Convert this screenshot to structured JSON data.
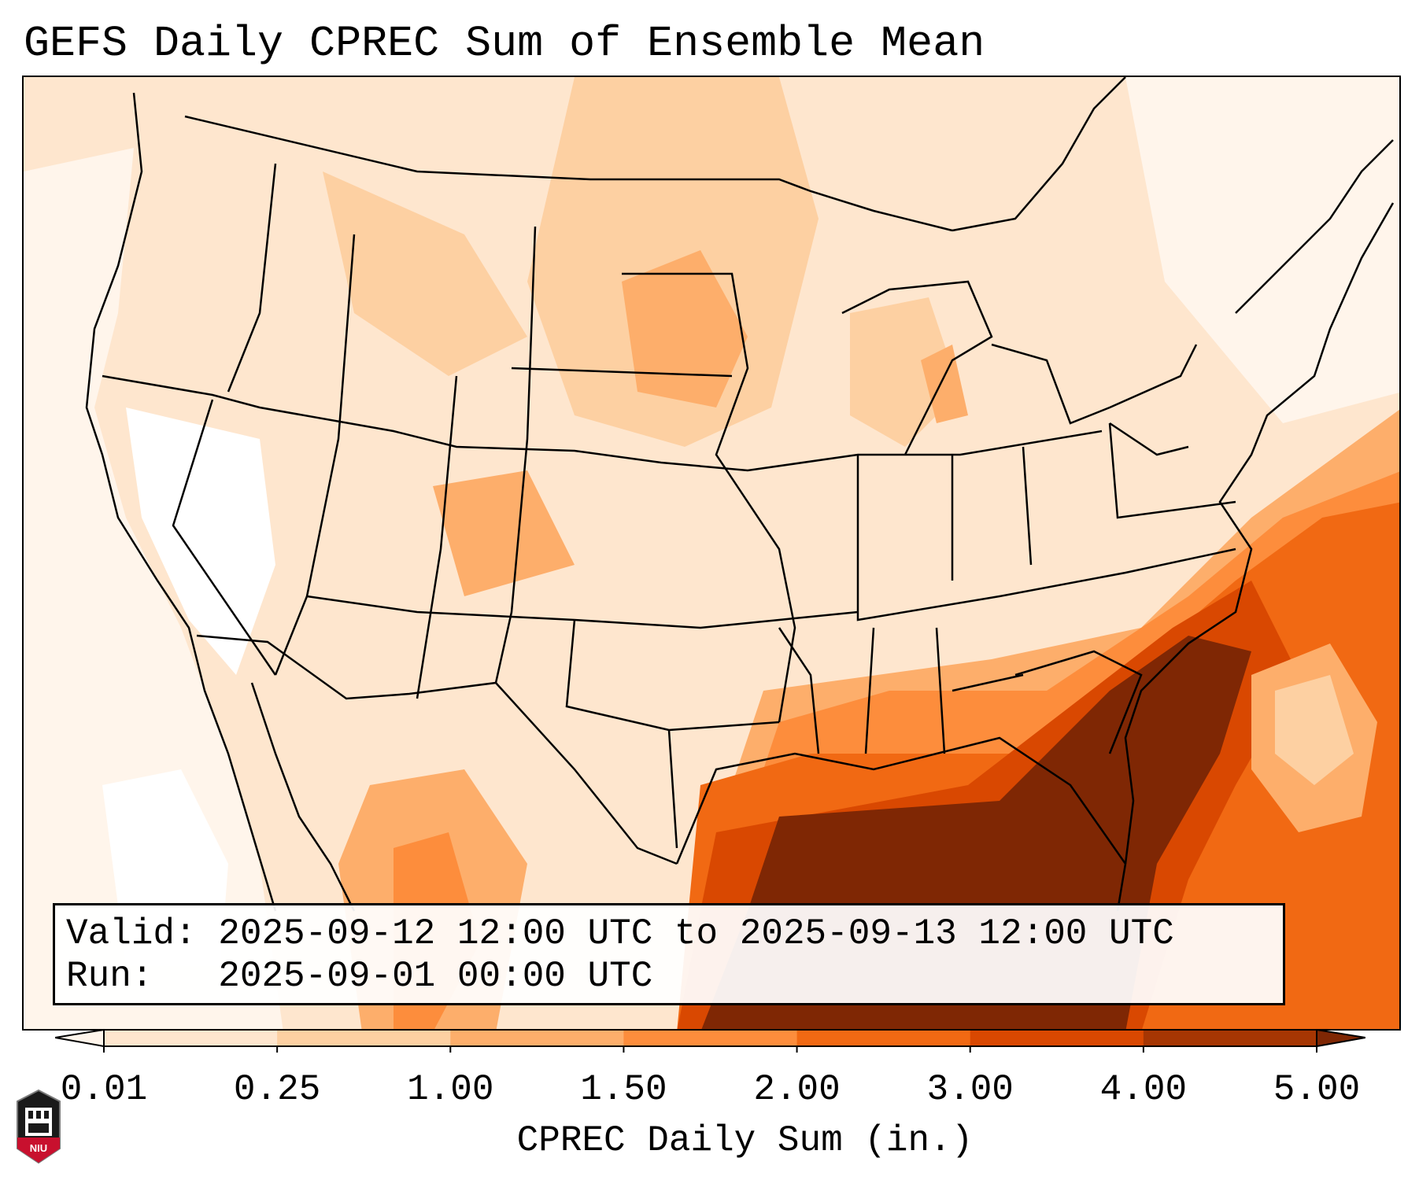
{
  "title": "GEFS Daily CPREC Sum of Ensemble Mean",
  "info": {
    "valid_line": "Valid: 2025-09-12 12:00 UTC to 2025-09-13 12:00 UTC",
    "run_line": "Run:   2025-09-01 00:00 UTC"
  },
  "colorbar": {
    "label": "CPREC Daily Sum (in.)",
    "levels": [
      "0.01",
      "0.25",
      "1.00",
      "1.50",
      "2.00",
      "3.00",
      "4.00",
      "5.00"
    ],
    "colors": [
      "#fff5eb",
      "#fee6ce",
      "#fdd0a2",
      "#fdae6b",
      "#fd8d3c",
      "#f16913",
      "#d94801",
      "#a63603",
      "#7f2704"
    ]
  },
  "logo": {
    "text": "NIU",
    "color": "#c8102e"
  }
}
